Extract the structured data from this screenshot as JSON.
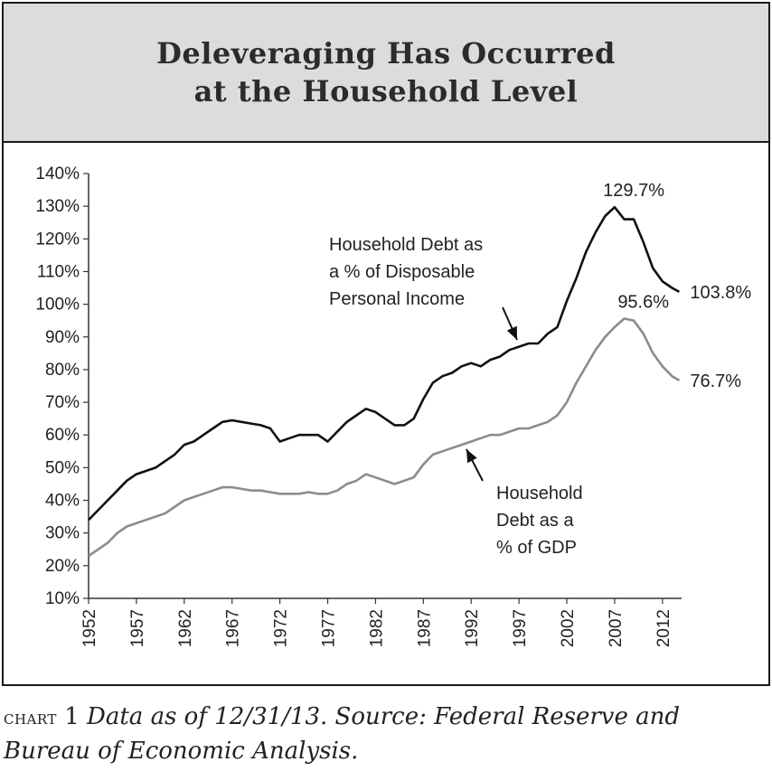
{
  "title_lines": [
    "Deleveraging Has Occurred",
    "at the Household Level"
  ],
  "caption": {
    "label": "chart",
    "number": "1",
    "text": "Data as of 12/31/13. Source: Federal Reserve and Bureau of Economic Analysis."
  },
  "colors": {
    "income_series": "#111111",
    "gdp_series": "#8c8c8c",
    "title_band": "#dcdcdc"
  },
  "chart_data": {
    "type": "line",
    "title": "Deleveraging Has Occurred at the Household Level",
    "xlabel": "",
    "ylabel": "",
    "xlim": [
      1952,
      2014
    ],
    "ylim": [
      10,
      140
    ],
    "y_ticks": [
      "10%",
      "20%",
      "30%",
      "40%",
      "50%",
      "60%",
      "70%",
      "80%",
      "90%",
      "100%",
      "110%",
      "120%",
      "130%",
      "140%"
    ],
    "x_ticks": [
      "1952",
      "1957",
      "1962",
      "1967",
      "1972",
      "1977",
      "1982",
      "1987",
      "1992",
      "1997",
      "2002",
      "2007",
      "2012"
    ],
    "grid": false,
    "series": [
      {
        "name": "Household Debt as a % of Disposable Personal Income",
        "label_lines": [
          "Household Debt as",
          "a % of Disposable",
          "Personal Income"
        ],
        "x": [
          1952,
          1953,
          1954,
          1955,
          1956,
          1957,
          1958,
          1959,
          1960,
          1961,
          1962,
          1963,
          1964,
          1965,
          1966,
          1967,
          1968,
          1969,
          1970,
          1971,
          1972,
          1973,
          1974,
          1975,
          1976,
          1977,
          1978,
          1979,
          1980,
          1981,
          1982,
          1983,
          1984,
          1985,
          1986,
          1987,
          1988,
          1989,
          1990,
          1991,
          1992,
          1993,
          1994,
          1995,
          1996,
          1997,
          1998,
          1999,
          2000,
          2001,
          2002,
          2003,
          2004,
          2005,
          2006,
          2007,
          2008,
          2009,
          2010,
          2011,
          2012,
          2013,
          2013.75
        ],
        "y": [
          34,
          37,
          40,
          43,
          46,
          48,
          49,
          50,
          52,
          54,
          57,
          58,
          60,
          62,
          64,
          64.5,
          64,
          63.5,
          63,
          62,
          58,
          59,
          60,
          60,
          60,
          58,
          61,
          64,
          66,
          68,
          67,
          65,
          63,
          63,
          65,
          71,
          76,
          78,
          79,
          81,
          82,
          81,
          83,
          84,
          86,
          87,
          88,
          88,
          91,
          93,
          101,
          108,
          116,
          122,
          127,
          129.7,
          126,
          126,
          119,
          111,
          107,
          105,
          103.8
        ]
      },
      {
        "name": "Household Debt as a % of GDP",
        "label_lines": [
          "Household",
          "Debt as a",
          "% of GDP"
        ],
        "x": [
          1952,
          1953,
          1954,
          1955,
          1956,
          1957,
          1958,
          1959,
          1960,
          1961,
          1962,
          1963,
          1964,
          1965,
          1966,
          1967,
          1968,
          1969,
          1970,
          1971,
          1972,
          1973,
          1974,
          1975,
          1976,
          1977,
          1978,
          1979,
          1980,
          1981,
          1982,
          1983,
          1984,
          1985,
          1986,
          1987,
          1988,
          1989,
          1990,
          1991,
          1992,
          1993,
          1994,
          1995,
          1996,
          1997,
          1998,
          1999,
          2000,
          2001,
          2002,
          2003,
          2004,
          2005,
          2006,
          2007,
          2008,
          2009,
          2010,
          2011,
          2012,
          2013,
          2013.75
        ],
        "y": [
          23,
          25,
          27,
          30,
          32,
          33,
          34,
          35,
          36,
          38,
          40,
          41,
          42,
          43,
          44,
          44,
          43.5,
          43,
          43,
          42.5,
          42,
          42,
          42,
          42.5,
          42,
          42,
          43,
          45,
          46,
          48,
          47,
          46,
          45,
          46,
          47,
          51,
          54,
          55,
          56,
          57,
          58,
          59,
          60,
          60,
          61,
          62,
          62,
          63,
          64,
          66,
          70,
          76,
          81,
          86,
          90,
          93,
          95.6,
          95,
          91,
          85,
          81,
          78,
          76.7
        ]
      }
    ],
    "annotations": [
      {
        "text": "129.7%",
        "x": 2009,
        "y": 129.7
      },
      {
        "text": "103.8%",
        "x": 2013.75,
        "y": 103.8
      },
      {
        "text": "95.6%",
        "x": 2010,
        "y": 95.6
      },
      {
        "text": "76.7%",
        "x": 2013.75,
        "y": 76.7
      }
    ]
  }
}
